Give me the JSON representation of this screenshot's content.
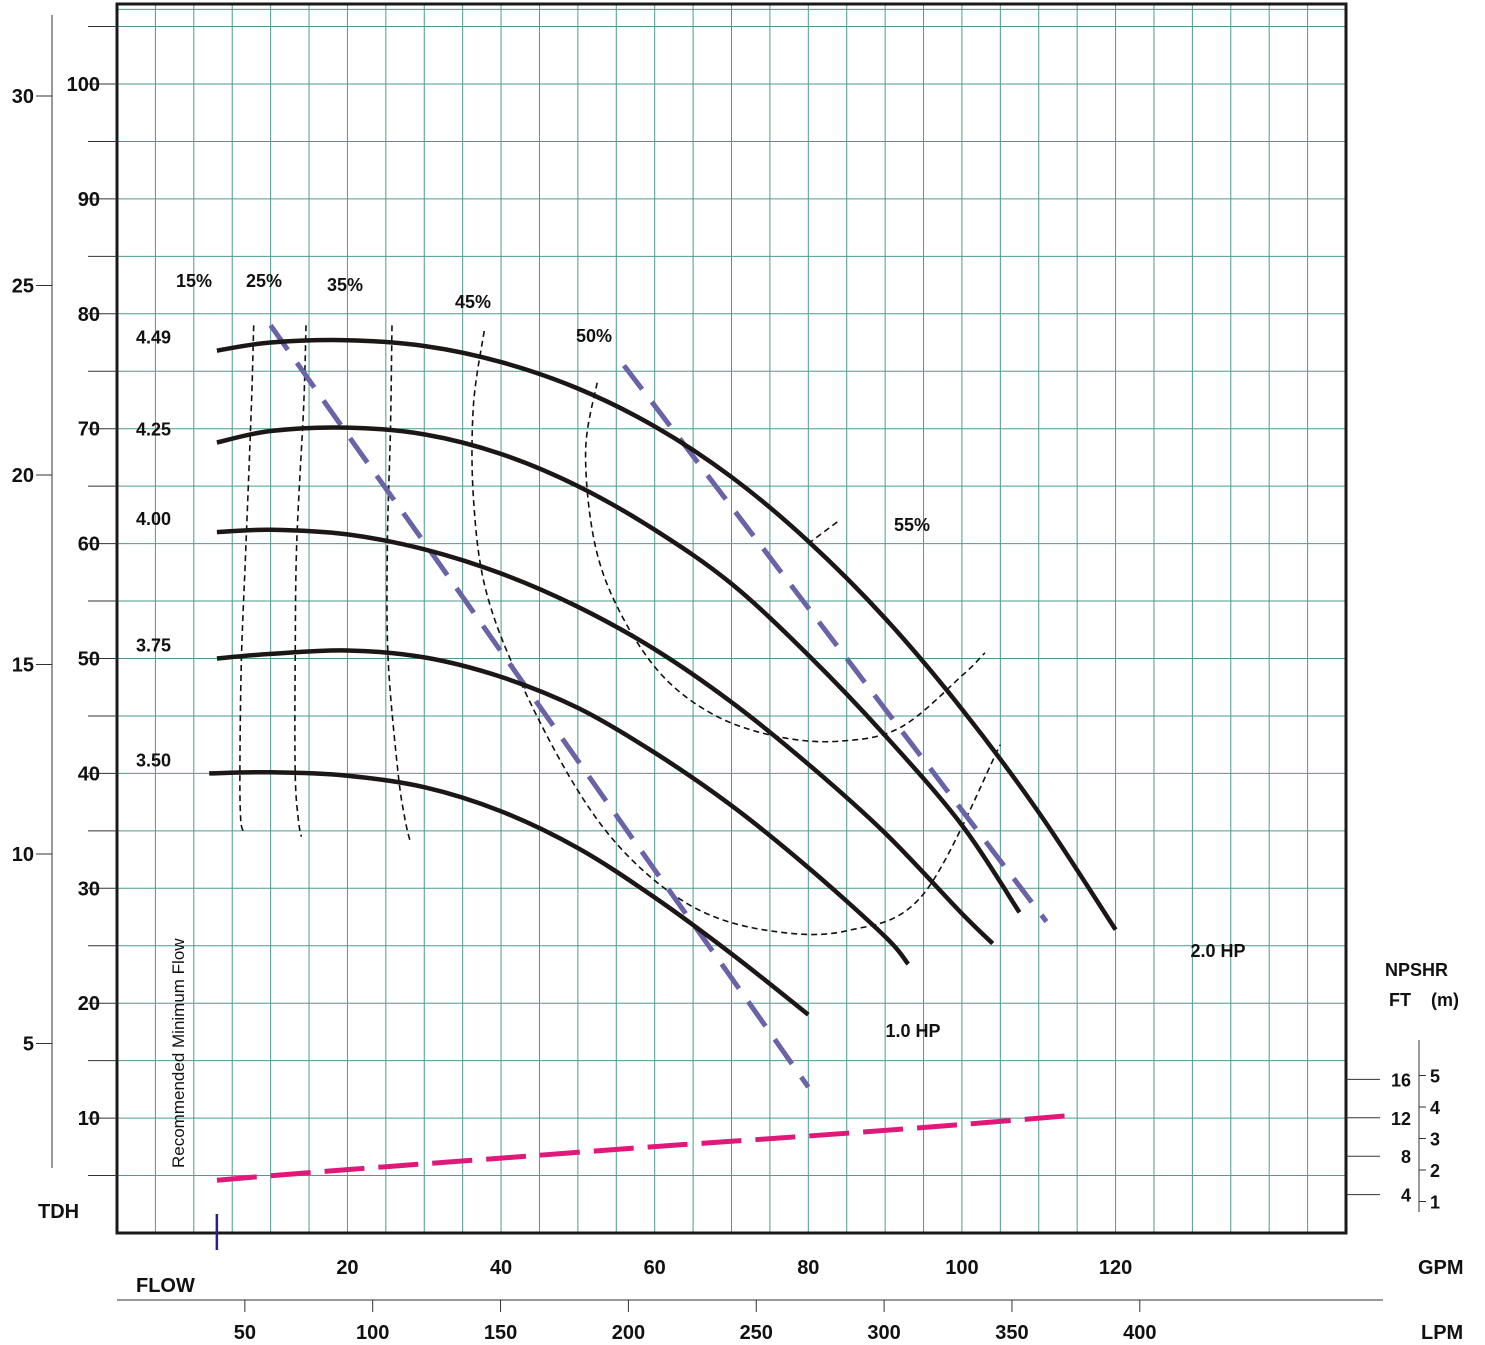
{
  "chart_data": {
    "type": "line",
    "title": "",
    "colors": {
      "grid": "#4f9a8c",
      "head_curves": "#1c1616",
      "efficiency": "#111111",
      "hp": "#6a63a8",
      "npshr": "#e0187a",
      "min_flow_marker": "#2a1f8a"
    },
    "axes": {
      "x_gpm": {
        "label": "GPM",
        "ticks": [
          "20",
          "40",
          "60",
          "80",
          "100",
          "120"
        ],
        "range": [
          -10,
          150
        ]
      },
      "x_lpm": {
        "label": "LPM",
        "ticks": [
          "50",
          "100",
          "150",
          "200",
          "250",
          "300",
          "350",
          "400"
        ]
      },
      "x_caption": "FLOW",
      "y_tdh_ft": {
        "label": "TDH",
        "ticks": [
          "10",
          "20",
          "30",
          "40",
          "50",
          "60",
          "70",
          "80",
          "90",
          "100"
        ],
        "range": [
          0,
          107
        ]
      },
      "y_tdh_m": {
        "ticks": [
          "5",
          "10",
          "15",
          "20",
          "25",
          "30"
        ]
      },
      "y_npshr_ft": {
        "label_line1": "NPSHR",
        "label_unit": "FT",
        "ticks": [
          "4",
          "8",
          "12",
          "16"
        ]
      },
      "y_npshr_m": {
        "label_unit": "(m)",
        "ticks": [
          "1",
          "2",
          "3",
          "4",
          "5"
        ]
      }
    },
    "min_flow_label": "Recommended Minimum Flow",
    "min_flow_gpm": 3,
    "head_curves": [
      {
        "name": "4.49",
        "x": [
          3,
          10,
          20,
          30,
          40,
          50,
          60,
          70,
          80,
          90,
          100,
          110,
          120
        ],
        "y": [
          76.8,
          77.5,
          77.7,
          77.2,
          75.8,
          73.5,
          70.2,
          65.8,
          60.2,
          53.5,
          45.6,
          36.6,
          26.4
        ]
      },
      {
        "name": "4.25",
        "x": [
          3,
          10,
          20,
          30,
          40,
          50,
          60,
          70,
          80,
          90,
          100,
          107.5
        ],
        "y": [
          68.8,
          69.8,
          70.1,
          69.5,
          67.8,
          65,
          61.2,
          56.5,
          50.3,
          43.3,
          35.5,
          27.9
        ]
      },
      {
        "name": "4.00",
        "x": [
          3,
          10,
          20,
          30,
          40,
          50,
          60,
          70,
          80,
          90,
          100,
          104
        ],
        "y": [
          61.0,
          61.2,
          60.8,
          59.5,
          57.4,
          54.5,
          50.8,
          46.2,
          40.8,
          34.8,
          27.8,
          25.2
        ]
      },
      {
        "name": "3.75",
        "x": [
          3,
          10,
          20,
          30,
          40,
          50,
          60,
          70,
          80,
          90,
          93
        ],
        "y": [
          50.0,
          50.4,
          50.7,
          50.1,
          48.4,
          45.7,
          41.8,
          37.2,
          31.8,
          25.8,
          23.4
        ]
      },
      {
        "name": "3.50",
        "x": [
          2,
          10,
          20,
          30,
          40,
          50,
          60,
          70,
          80
        ],
        "y": [
          40.0,
          40.1,
          39.8,
          38.8,
          36.7,
          33.5,
          29.2,
          24.3,
          19.0
        ]
      }
    ],
    "efficiency_curves": [
      {
        "label": "15%",
        "x": [
          7.8,
          7.5,
          6.8,
          6.2,
          6,
          6.1,
          6.4
        ],
        "y": [
          79,
          72,
          60,
          50,
          40,
          36,
          35
        ]
      },
      {
        "label": "25%",
        "x": [
          14.6,
          14.3,
          13.4,
          13.2,
          13.2,
          13.6,
          14
        ],
        "y": [
          79,
          72,
          60,
          50,
          40,
          36,
          34.5
        ]
      },
      {
        "label": "35%",
        "x": [
          25.8,
          25.6,
          25.2,
          25.3,
          26.6,
          27.5,
          28.2
        ],
        "y": [
          79,
          70,
          60,
          50,
          40,
          36,
          34
        ]
      },
      {
        "label": "45%",
        "x": [
          37.8,
          36.4,
          36.4,
          38,
          42.5,
          50,
          57,
          65.5,
          75,
          85,
          95,
          105
        ],
        "y": [
          78.5,
          72,
          64,
          56,
          48,
          38.5,
          32.5,
          28.2,
          26.3,
          26.3,
          29.5,
          42.5
        ]
      },
      {
        "label": "50%",
        "x": [
          52.5,
          51,
          52.2,
          55.5,
          61,
          68,
          76,
          84,
          92,
          100,
          103
        ],
        "y": [
          74,
          68,
          60,
          54,
          48.5,
          45,
          43.2,
          42.8,
          44,
          48.5,
          50.5
        ]
      },
      {
        "label": "55%",
        "x": [
          80,
          84
        ],
        "y": [
          60,
          62
        ]
      }
    ],
    "hp_lines": [
      {
        "label": "2.0 HP",
        "x": [
          56,
          60,
          70,
          80,
          90,
          100,
          111
        ],
        "y": [
          75.5,
          72,
          63.2,
          54.4,
          45.6,
          36.8,
          27.1
        ]
      },
      {
        "label": "1.0 HP",
        "x": [
          10,
          20,
          30,
          40,
          50,
          60,
          70,
          80
        ],
        "y": [
          79,
          69.5,
          60.1,
          50.6,
          41.1,
          31.6,
          22.2,
          12.7
        ]
      }
    ],
    "npshr_ft": {
      "x": [
        3,
        20,
        40,
        60,
        80,
        100,
        115
      ],
      "y": [
        5.5,
        6.6,
        7.8,
        9.0,
        10.1,
        11.3,
        12.3
      ]
    }
  }
}
